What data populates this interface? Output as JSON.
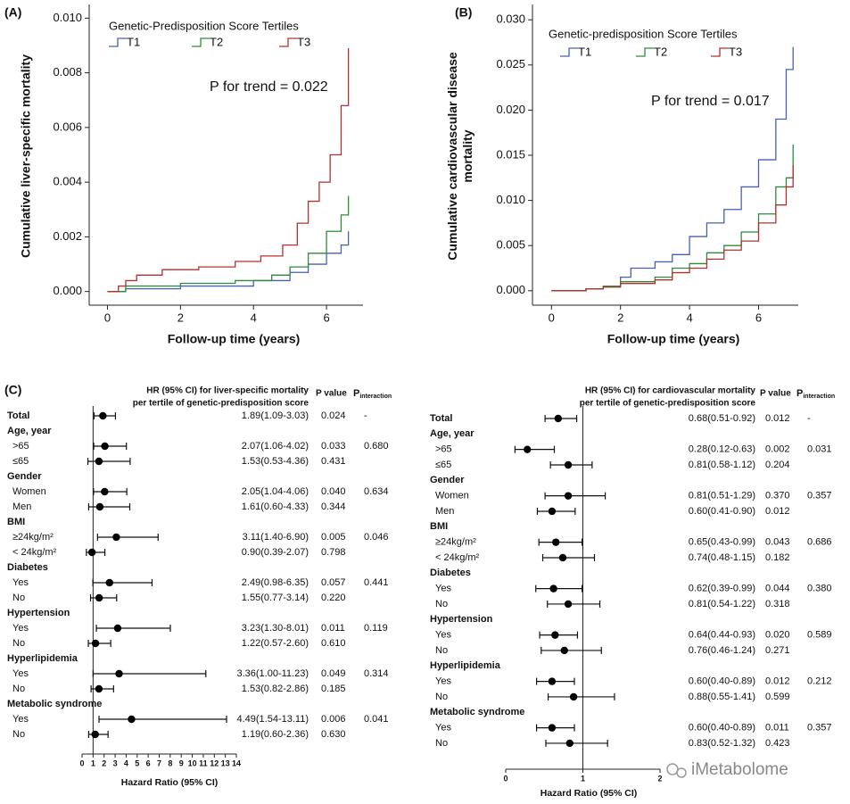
{
  "chart_data": [
    {
      "type": "line",
      "step": true,
      "panel_label": "(A)",
      "ylabel": [
        "Cumulative liver-specific mortality"
      ],
      "xlabel": "Follow-up time (years)",
      "legend_title": "Genetic-Predisposition Score Tertiles",
      "annotation": "P for trend = 0.022",
      "xlim": [
        -0.5,
        7
      ],
      "xticks": [
        0,
        2,
        4,
        6
      ],
      "ylim": [
        -0.0005,
        0.0105
      ],
      "yticks": [
        {
          "value": 0,
          "label": "0.000"
        },
        {
          "value": 0.002,
          "label": "0.002"
        },
        {
          "value": 0.004,
          "label": "0.004"
        },
        {
          "value": 0.006,
          "label": "0.006"
        },
        {
          "value": 0.008,
          "label": "0.008"
        },
        {
          "value": 0.01,
          "label": "0.010"
        }
      ],
      "series": [
        {
          "name": "T1",
          "color": "#4a5fb0",
          "x": [
            0,
            0.5,
            2,
            4,
            5,
            5.5,
            6,
            6.4,
            6.6
          ],
          "values": [
            0,
            0.0001,
            0.0002,
            0.0004,
            0.0007,
            0.001,
            0.0014,
            0.0017,
            0.0022
          ]
        },
        {
          "name": "T2",
          "color": "#2e8b3e",
          "x": [
            0,
            0.5,
            2,
            3.5,
            4.5,
            5,
            5.5,
            6,
            6.4,
            6.6
          ],
          "values": [
            0,
            0.0002,
            0.0003,
            0.0004,
            0.0006,
            0.0009,
            0.0014,
            0.0022,
            0.0028,
            0.0035
          ]
        },
        {
          "name": "T3",
          "color": "#b5302f",
          "x": [
            0,
            0.3,
            0.5,
            0.8,
            1.5,
            2.5,
            3.5,
            4.2,
            4.8,
            5.2,
            5.5,
            5.8,
            6.1,
            6.4,
            6.6
          ],
          "values": [
            0,
            0.0002,
            0.0004,
            0.0006,
            0.0008,
            0.0009,
            0.0011,
            0.0013,
            0.0017,
            0.0025,
            0.0033,
            0.004,
            0.005,
            0.0068,
            0.0089
          ]
        }
      ]
    },
    {
      "type": "line",
      "step": true,
      "panel_label": "(B)",
      "ylabel": [
        "Cumulative cardiovascular disease",
        "mortality"
      ],
      "xlabel": "Follow-up time (years)",
      "legend_title": "Genetic-predisposition Score Tertiles",
      "annotation": "P for trend = 0.017",
      "xlim": [
        -0.55,
        7.15
      ],
      "xticks": [
        0,
        2,
        4,
        6
      ],
      "ylim": [
        -0.0016,
        0.0317
      ],
      "yticks": [
        {
          "value": 0,
          "label": "0.000"
        },
        {
          "value": 0.005,
          "label": "0.005"
        },
        {
          "value": 0.01,
          "label": "0.010"
        },
        {
          "value": 0.015,
          "label": "0.015"
        },
        {
          "value": 0.02,
          "label": "0.020"
        },
        {
          "value": 0.025,
          "label": "0.025"
        },
        {
          "value": 0.03,
          "label": "0.030"
        }
      ],
      "series": [
        {
          "name": "T1",
          "color": "#4a5fb0",
          "x": [
            0,
            1,
            1.5,
            2,
            2.3,
            3,
            3.5,
            4,
            4.5,
            5,
            5.5,
            6,
            6.5,
            6.8,
            7
          ],
          "values": [
            0,
            0.0002,
            0.0005,
            0.0015,
            0.0025,
            0.0032,
            0.004,
            0.006,
            0.0075,
            0.009,
            0.0115,
            0.0145,
            0.019,
            0.0245,
            0.027
          ]
        },
        {
          "name": "T2",
          "color": "#2e8b3e",
          "x": [
            0,
            1,
            1.5,
            2,
            3,
            3.5,
            4,
            4.5,
            5,
            5.5,
            6,
            6.5,
            6.8,
            7
          ],
          "values": [
            0,
            0.0002,
            0.0005,
            0.001,
            0.0015,
            0.0025,
            0.003,
            0.0042,
            0.005,
            0.0065,
            0.0085,
            0.0115,
            0.0125,
            0.0162
          ]
        },
        {
          "name": "T3",
          "color": "#b5302f",
          "x": [
            0,
            1,
            1.5,
            2,
            3,
            3.5,
            4,
            4.5,
            5,
            5.5,
            6,
            6.5,
            6.8,
            7
          ],
          "values": [
            0,
            0.0002,
            0.0004,
            0.0008,
            0.0012,
            0.002,
            0.0025,
            0.0035,
            0.0045,
            0.0055,
            0.0075,
            0.0095,
            0.0115,
            0.0139
          ]
        }
      ]
    },
    {
      "type": "forest",
      "panel_label": "(C)",
      "column_header": [
        "HR (95% CI) for liver-specific mortality",
        "per tertile of genetic-predisposition score"
      ],
      "p_header": "P value",
      "p_interaction_header": {
        "main": "P",
        "sub": "interaction"
      },
      "xlabel": "Hazard  Ratio (95% CI)",
      "xlim": [
        0,
        14
      ],
      "xticks": [
        0,
        1,
        2,
        3,
        4,
        5,
        6,
        7,
        8,
        9,
        10,
        11,
        12,
        13,
        14
      ],
      "reference_line": 1,
      "rows": [
        {
          "label": "Total",
          "value": 1.89,
          "ci": [
            1.09,
            3.03
          ],
          "value_label": "1.89(1.09-3.03)",
          "p": "0.024",
          "p_interaction": "-"
        },
        {
          "label": "Age, year"
        },
        {
          "label": ">65",
          "value": 2.07,
          "ci": [
            1.06,
            4.02
          ],
          "value_label": "2.07(1.06-4.02)",
          "p": "0.033",
          "p_interaction": "0.680"
        },
        {
          "label": "≤65",
          "value": 1.53,
          "ci": [
            0.53,
            4.36
          ],
          "value_label": "1.53(0.53-4.36)",
          "p": "0.431"
        },
        {
          "label": "Gender"
        },
        {
          "label": "Women",
          "value": 2.05,
          "ci": [
            1.04,
            4.06
          ],
          "value_label": "2.05(1.04-4.06)",
          "p": "0.040",
          "p_interaction": "0.634"
        },
        {
          "label": "Men",
          "value": 1.61,
          "ci": [
            0.6,
            4.33
          ],
          "value_label": "1.61(0.60-4.33)",
          "p": "0.344"
        },
        {
          "label": "BMI"
        },
        {
          "label": "≥24kg/m²",
          "value": 3.11,
          "ci": [
            1.4,
            6.9
          ],
          "value_label": "3.11(1.40-6.90)",
          "p": "0.005",
          "p_interaction": "0.046"
        },
        {
          "label": "< 24kg/m²",
          "value": 0.9,
          "ci": [
            0.39,
            2.07
          ],
          "value_label": "0.90(0.39-2.07)",
          "p": "0.798"
        },
        {
          "label": "Diabetes"
        },
        {
          "label": "Yes",
          "value": 2.49,
          "ci": [
            0.98,
            6.35
          ],
          "value_label": "2.49(0.98-6.35)",
          "p": "0.057",
          "p_interaction": "0.441"
        },
        {
          "label": "No",
          "value": 1.55,
          "ci": [
            0.77,
            3.14
          ],
          "value_label": "1.55(0.77-3.14)",
          "p": "0.220"
        },
        {
          "label": "Hypertension"
        },
        {
          "label": "Yes",
          "value": 3.23,
          "ci": [
            1.3,
            8.01
          ],
          "value_label": "3.23(1.30-8.01)",
          "p": "0.011",
          "p_interaction": "0.119"
        },
        {
          "label": "No",
          "value": 1.22,
          "ci": [
            0.57,
            2.6
          ],
          "value_label": "1.22(0.57-2.60)",
          "p": "0.610"
        },
        {
          "label": "Hyperlipidemia"
        },
        {
          "label": "Yes",
          "value": 3.36,
          "ci": [
            1.0,
            11.23
          ],
          "value_label": "3.36(1.00-11.23)",
          "p": "0.049",
          "p_interaction": "0.314"
        },
        {
          "label": "No",
          "value": 1.53,
          "ci": [
            0.82,
            2.86
          ],
          "value_label": "1.53(0.82-2.86)",
          "p": "0.185"
        },
        {
          "label": "Metabolic syndrome"
        },
        {
          "label": "Yes",
          "value": 4.49,
          "ci": [
            1.54,
            13.11
          ],
          "value_label": "4.49(1.54-13.11)",
          "p": "0.006",
          "p_interaction": "0.041"
        },
        {
          "label": "No",
          "value": 1.19,
          "ci": [
            0.6,
            2.36
          ],
          "value_label": "1.19(0.60-2.36)",
          "p": "0.630"
        }
      ]
    },
    {
      "type": "forest",
      "column_header": [
        "HR (95% CI) for cardiovascular mortality",
        "per tertile of genetic-predisposition score"
      ],
      "p_header": "P value",
      "p_interaction_header": {
        "main": "P",
        "sub": "interaction"
      },
      "xlabel": "Hazard  Ratio (95% CI)",
      "xlim": [
        0,
        2
      ],
      "xticks": [
        0,
        1,
        2
      ],
      "reference_line": 1,
      "rows": [
        {
          "label": "Total",
          "value": 0.68,
          "ci": [
            0.51,
            0.92
          ],
          "value_label": "0.68(0.51-0.92)",
          "p": "0.012",
          "p_interaction": "-"
        },
        {
          "label": "Age, year"
        },
        {
          "label": ">65",
          "value": 0.28,
          "ci": [
            0.12,
            0.63
          ],
          "value_label": "0.28(0.12-0.63)",
          "p": "0.002",
          "p_interaction": "0.031"
        },
        {
          "label": "≤65",
          "value": 0.81,
          "ci": [
            0.58,
            1.12
          ],
          "value_label": "0.81(0.58-1.12)",
          "p": "0.204"
        },
        {
          "label": "Gender"
        },
        {
          "label": "Women",
          "value": 0.81,
          "ci": [
            0.51,
            1.29
          ],
          "value_label": "0.81(0.51-1.29)",
          "p": "0.370",
          "p_interaction": "0.357"
        },
        {
          "label": "Men",
          "value": 0.6,
          "ci": [
            0.41,
            0.9
          ],
          "value_label": "0.60(0.41-0.90)",
          "p": "0.012"
        },
        {
          "label": "BMI"
        },
        {
          "label": "≥24kg/m²",
          "value": 0.65,
          "ci": [
            0.43,
            0.99
          ],
          "value_label": "0.65(0.43-0.99)",
          "p": "0.043",
          "p_interaction": "0.686"
        },
        {
          "label": "< 24kg/m²",
          "value": 0.74,
          "ci": [
            0.48,
            1.15
          ],
          "value_label": "0.74(0.48-1.15)",
          "p": "0.182"
        },
        {
          "label": "Diabetes"
        },
        {
          "label": "Yes",
          "value": 0.62,
          "ci": [
            0.39,
            0.99
          ],
          "value_label": "0.62(0.39-0.99)",
          "p": "0.044",
          "p_interaction": "0.380"
        },
        {
          "label": "No",
          "value": 0.81,
          "ci": [
            0.54,
            1.22
          ],
          "value_label": "0.81(0.54-1.22)",
          "p": "0.318"
        },
        {
          "label": "Hypertension"
        },
        {
          "label": "Yes",
          "value": 0.64,
          "ci": [
            0.44,
            0.93
          ],
          "value_label": "0.64(0.44-0.93)",
          "p": "0.020",
          "p_interaction": "0.589"
        },
        {
          "label": "No",
          "value": 0.76,
          "ci": [
            0.46,
            1.24
          ],
          "value_label": "0.76(0.46-1.24)",
          "p": "0.271"
        },
        {
          "label": "Hyperlipidemia"
        },
        {
          "label": "Yes",
          "value": 0.6,
          "ci": [
            0.4,
            0.89
          ],
          "value_label": "0.60(0.40-0.89)",
          "p": "0.012",
          "p_interaction": "0.212"
        },
        {
          "label": "No",
          "value": 0.88,
          "ci": [
            0.55,
            1.41
          ],
          "value_label": "0.88(0.55-1.41)",
          "p": "0.599"
        },
        {
          "label": "Metabolic syndrome"
        },
        {
          "label": "Yes",
          "value": 0.6,
          "ci": [
            0.4,
            0.89
          ],
          "value_label": "0.60(0.40-0.89)",
          "p": "0.011",
          "p_interaction": "0.357"
        },
        {
          "label": "No",
          "value": 0.83,
          "ci": [
            0.52,
            1.32
          ],
          "value_label": "0.83(0.52-1.32)",
          "p": "0.423"
        }
      ]
    }
  ],
  "watermark": "iMetabolome"
}
